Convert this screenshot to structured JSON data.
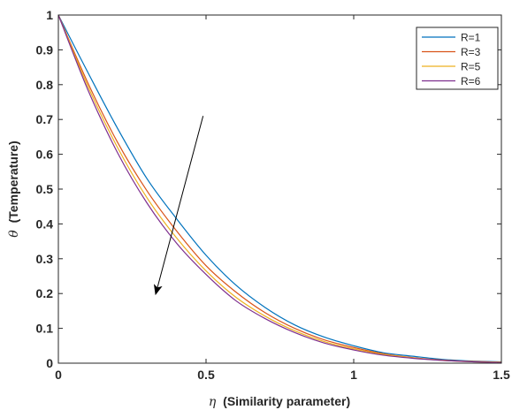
{
  "chart_data": {
    "type": "line",
    "xlim": [
      0,
      1.5
    ],
    "ylim": [
      0,
      1
    ],
    "xticks": [
      "0",
      "0.5",
      "1",
      "1.5"
    ],
    "yticks": [
      "0",
      "0.1",
      "0.2",
      "0.3",
      "0.4",
      "0.5",
      "0.6",
      "0.7",
      "0.8",
      "0.9",
      "1"
    ],
    "xlabel_symbol": "η",
    "xlabel_text": "(Similarity parameter)",
    "ylabel_symbol": "θ",
    "ylabel_text": "(Temperature)",
    "grid": false,
    "legend_position": "top-right",
    "x": [
      0,
      0.1,
      0.2,
      0.3,
      0.4,
      0.5,
      0.6,
      0.7,
      0.8,
      0.9,
      1.0,
      1.1,
      1.2,
      1.3,
      1.4,
      1.5
    ],
    "series": [
      {
        "name": "R=1",
        "color": "#0072BD",
        "values": [
          1.0,
          0.835,
          0.675,
          0.53,
          0.415,
          0.31,
          0.225,
          0.16,
          0.11,
          0.075,
          0.05,
          0.03,
          0.02,
          0.011,
          0.006,
          0.004
        ]
      },
      {
        "name": "R=3",
        "color": "#D95319",
        "values": [
          1.0,
          0.805,
          0.635,
          0.495,
          0.38,
          0.28,
          0.205,
          0.145,
          0.1,
          0.067,
          0.045,
          0.027,
          0.016,
          0.009,
          0.005,
          0.003
        ]
      },
      {
        "name": "R=5",
        "color": "#EDB120",
        "values": [
          1.0,
          0.795,
          0.62,
          0.475,
          0.36,
          0.265,
          0.19,
          0.135,
          0.093,
          0.062,
          0.041,
          0.025,
          0.015,
          0.008,
          0.004,
          0.003
        ]
      },
      {
        "name": "R=6",
        "color": "#7E2F8E",
        "values": [
          1.0,
          0.785,
          0.605,
          0.46,
          0.345,
          0.255,
          0.18,
          0.128,
          0.088,
          0.058,
          0.038,
          0.023,
          0.014,
          0.008,
          0.004,
          0.002
        ]
      }
    ],
    "annotations": [
      {
        "type": "arrow",
        "from": [
          0.49,
          0.71
        ],
        "to": [
          0.33,
          0.2
        ]
      }
    ]
  }
}
